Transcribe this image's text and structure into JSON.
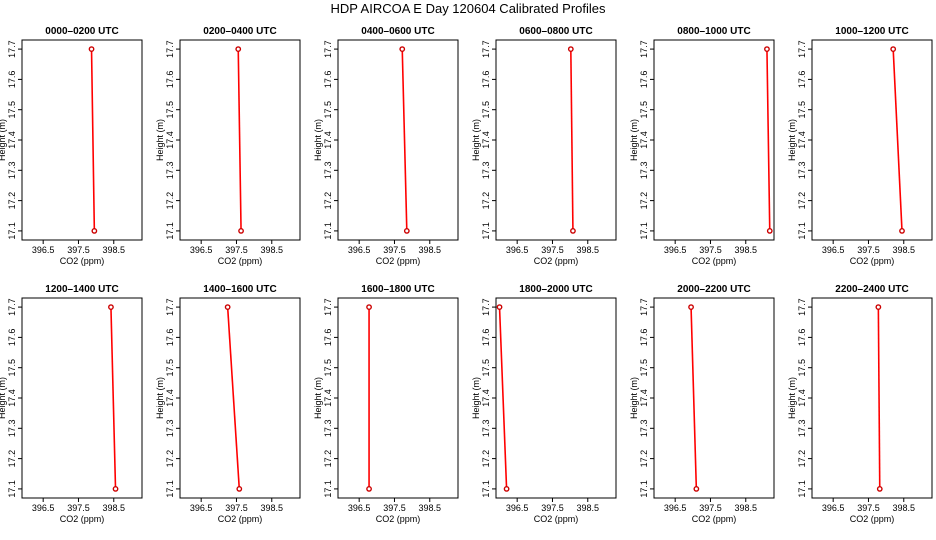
{
  "title": "HDP AIRCOA E  Day 120604  Calibrated Profiles",
  "colors": {
    "profile_line": "#ff0000",
    "marker": "#cc0000",
    "frame": "#000000"
  },
  "chart_data": [
    {
      "type": "line",
      "title": "0000–0200 UTC",
      "xlabel": "CO2 (ppm)",
      "ylabel": "Height (m)",
      "xlim": [
        395.9,
        399.3
      ],
      "ylim": [
        17.07,
        17.73
      ],
      "xticks": [
        "396.5",
        "397.5",
        "398.5"
      ],
      "yticks": [
        "17.1",
        "17.2",
        "17.3",
        "17.4",
        "17.5",
        "17.6",
        "17.7"
      ],
      "grid": false,
      "legend": "none",
      "x": [
        397.95,
        397.87
      ],
      "y": [
        17.1,
        17.7
      ]
    },
    {
      "type": "line",
      "title": "0200–0400 UTC",
      "xlabel": "CO2 (ppm)",
      "ylabel": "Height (m)",
      "xlim": [
        395.9,
        399.3
      ],
      "ylim": [
        17.07,
        17.73
      ],
      "xticks": [
        "396.5",
        "397.5",
        "398.5"
      ],
      "yticks": [
        "17.1",
        "17.2",
        "17.3",
        "17.4",
        "17.5",
        "17.6",
        "17.7"
      ],
      "grid": false,
      "legend": "none",
      "x": [
        397.63,
        397.55
      ],
      "y": [
        17.1,
        17.7
      ]
    },
    {
      "type": "line",
      "title": "0400–0600 UTC",
      "xlabel": "CO2 (ppm)",
      "ylabel": "Height (m)",
      "xlim": [
        395.9,
        399.3
      ],
      "ylim": [
        17.07,
        17.73
      ],
      "xticks": [
        "396.5",
        "397.5",
        "398.5"
      ],
      "yticks": [
        "17.1",
        "17.2",
        "17.3",
        "17.4",
        "17.5",
        "17.6",
        "17.7"
      ],
      "grid": false,
      "legend": "none",
      "x": [
        397.85,
        397.72
      ],
      "y": [
        17.1,
        17.7
      ]
    },
    {
      "type": "line",
      "title": "0600–0800 UTC",
      "xlabel": "CO2 (ppm)",
      "ylabel": "Height (m)",
      "xlim": [
        395.9,
        399.3
      ],
      "ylim": [
        17.07,
        17.73
      ],
      "xticks": [
        "396.5",
        "397.5",
        "398.5"
      ],
      "yticks": [
        "17.1",
        "17.2",
        "17.3",
        "17.4",
        "17.5",
        "17.6",
        "17.7"
      ],
      "grid": false,
      "legend": "none",
      "x": [
        398.08,
        398.02
      ],
      "y": [
        17.1,
        17.7
      ]
    },
    {
      "type": "line",
      "title": "0800–1000 UTC",
      "xlabel": "CO2 (ppm)",
      "ylabel": "Height (m)",
      "xlim": [
        395.9,
        399.3
      ],
      "ylim": [
        17.07,
        17.73
      ],
      "xticks": [
        "396.5",
        "397.5",
        "398.5"
      ],
      "yticks": [
        "17.1",
        "17.2",
        "17.3",
        "17.4",
        "17.5",
        "17.6",
        "17.7"
      ],
      "grid": false,
      "legend": "none",
      "x": [
        399.18,
        399.1
      ],
      "y": [
        17.1,
        17.7
      ]
    },
    {
      "type": "line",
      "title": "1000–1200 UTC",
      "xlabel": "CO2 (ppm)",
      "ylabel": "Height (m)",
      "xlim": [
        395.9,
        399.3
      ],
      "ylim": [
        17.07,
        17.73
      ],
      "xticks": [
        "396.5",
        "397.5",
        "398.5"
      ],
      "yticks": [
        "17.1",
        "17.2",
        "17.3",
        "17.4",
        "17.5",
        "17.6",
        "17.7"
      ],
      "grid": false,
      "legend": "none",
      "x": [
        398.45,
        398.2
      ],
      "y": [
        17.1,
        17.7
      ]
    },
    {
      "type": "line",
      "title": "1200–1400 UTC",
      "xlabel": "CO2 (ppm)",
      "ylabel": "Height (m)",
      "xlim": [
        395.9,
        399.3
      ],
      "ylim": [
        17.07,
        17.73
      ],
      "xticks": [
        "396.5",
        "397.5",
        "398.5"
      ],
      "yticks": [
        "17.1",
        "17.2",
        "17.3",
        "17.4",
        "17.5",
        "17.6",
        "17.7"
      ],
      "grid": false,
      "legend": "none",
      "x": [
        398.55,
        398.42
      ],
      "y": [
        17.1,
        17.7
      ]
    },
    {
      "type": "line",
      "title": "1400–1600 UTC",
      "xlabel": "CO2 (ppm)",
      "ylabel": "Height (m)",
      "xlim": [
        395.9,
        399.3
      ],
      "ylim": [
        17.07,
        17.73
      ],
      "xticks": [
        "396.5",
        "397.5",
        "398.5"
      ],
      "yticks": [
        "17.1",
        "17.2",
        "17.3",
        "17.4",
        "17.5",
        "17.6",
        "17.7"
      ],
      "grid": false,
      "legend": "none",
      "x": [
        397.58,
        397.25
      ],
      "y": [
        17.1,
        17.7
      ]
    },
    {
      "type": "line",
      "title": "1600–1800 UTC",
      "xlabel": "CO2 (ppm)",
      "ylabel": "Height (m)",
      "xlim": [
        395.9,
        399.3
      ],
      "ylim": [
        17.07,
        17.73
      ],
      "xticks": [
        "396.5",
        "397.5",
        "398.5"
      ],
      "yticks": [
        "17.1",
        "17.2",
        "17.3",
        "17.4",
        "17.5",
        "17.6",
        "17.7"
      ],
      "grid": false,
      "legend": "none",
      "x": [
        396.78,
        396.78
      ],
      "y": [
        17.1,
        17.7
      ]
    },
    {
      "type": "line",
      "title": "1800–2000 UTC",
      "xlabel": "CO2 (ppm)",
      "ylabel": "Height (m)",
      "xlim": [
        395.9,
        399.3
      ],
      "ylim": [
        17.07,
        17.73
      ],
      "xticks": [
        "396.5",
        "397.5",
        "398.5"
      ],
      "yticks": [
        "17.1",
        "17.2",
        "17.3",
        "17.4",
        "17.5",
        "17.6",
        "17.7"
      ],
      "grid": false,
      "legend": "none",
      "x": [
        396.2,
        396.0
      ],
      "y": [
        17.1,
        17.7
      ]
    },
    {
      "type": "line",
      "title": "2000–2200 UTC",
      "xlabel": "CO2 (ppm)",
      "ylabel": "Height (m)",
      "xlim": [
        395.9,
        399.3
      ],
      "ylim": [
        17.07,
        17.73
      ],
      "xticks": [
        "396.5",
        "397.5",
        "398.5"
      ],
      "yticks": [
        "17.1",
        "17.2",
        "17.3",
        "17.4",
        "17.5",
        "17.6",
        "17.7"
      ],
      "grid": false,
      "legend": "none",
      "x": [
        397.1,
        396.95
      ],
      "y": [
        17.1,
        17.7
      ]
    },
    {
      "type": "line",
      "title": "2200–2400 UTC",
      "xlabel": "CO2 (ppm)",
      "ylabel": "Height (m)",
      "xlim": [
        395.9,
        399.3
      ],
      "ylim": [
        17.07,
        17.73
      ],
      "xticks": [
        "396.5",
        "397.5",
        "398.5"
      ],
      "yticks": [
        "17.1",
        "17.2",
        "17.3",
        "17.4",
        "17.5",
        "17.6",
        "17.7"
      ],
      "grid": false,
      "legend": "none",
      "x": [
        397.82,
        397.78
      ],
      "y": [
        17.1,
        17.7
      ]
    }
  ]
}
